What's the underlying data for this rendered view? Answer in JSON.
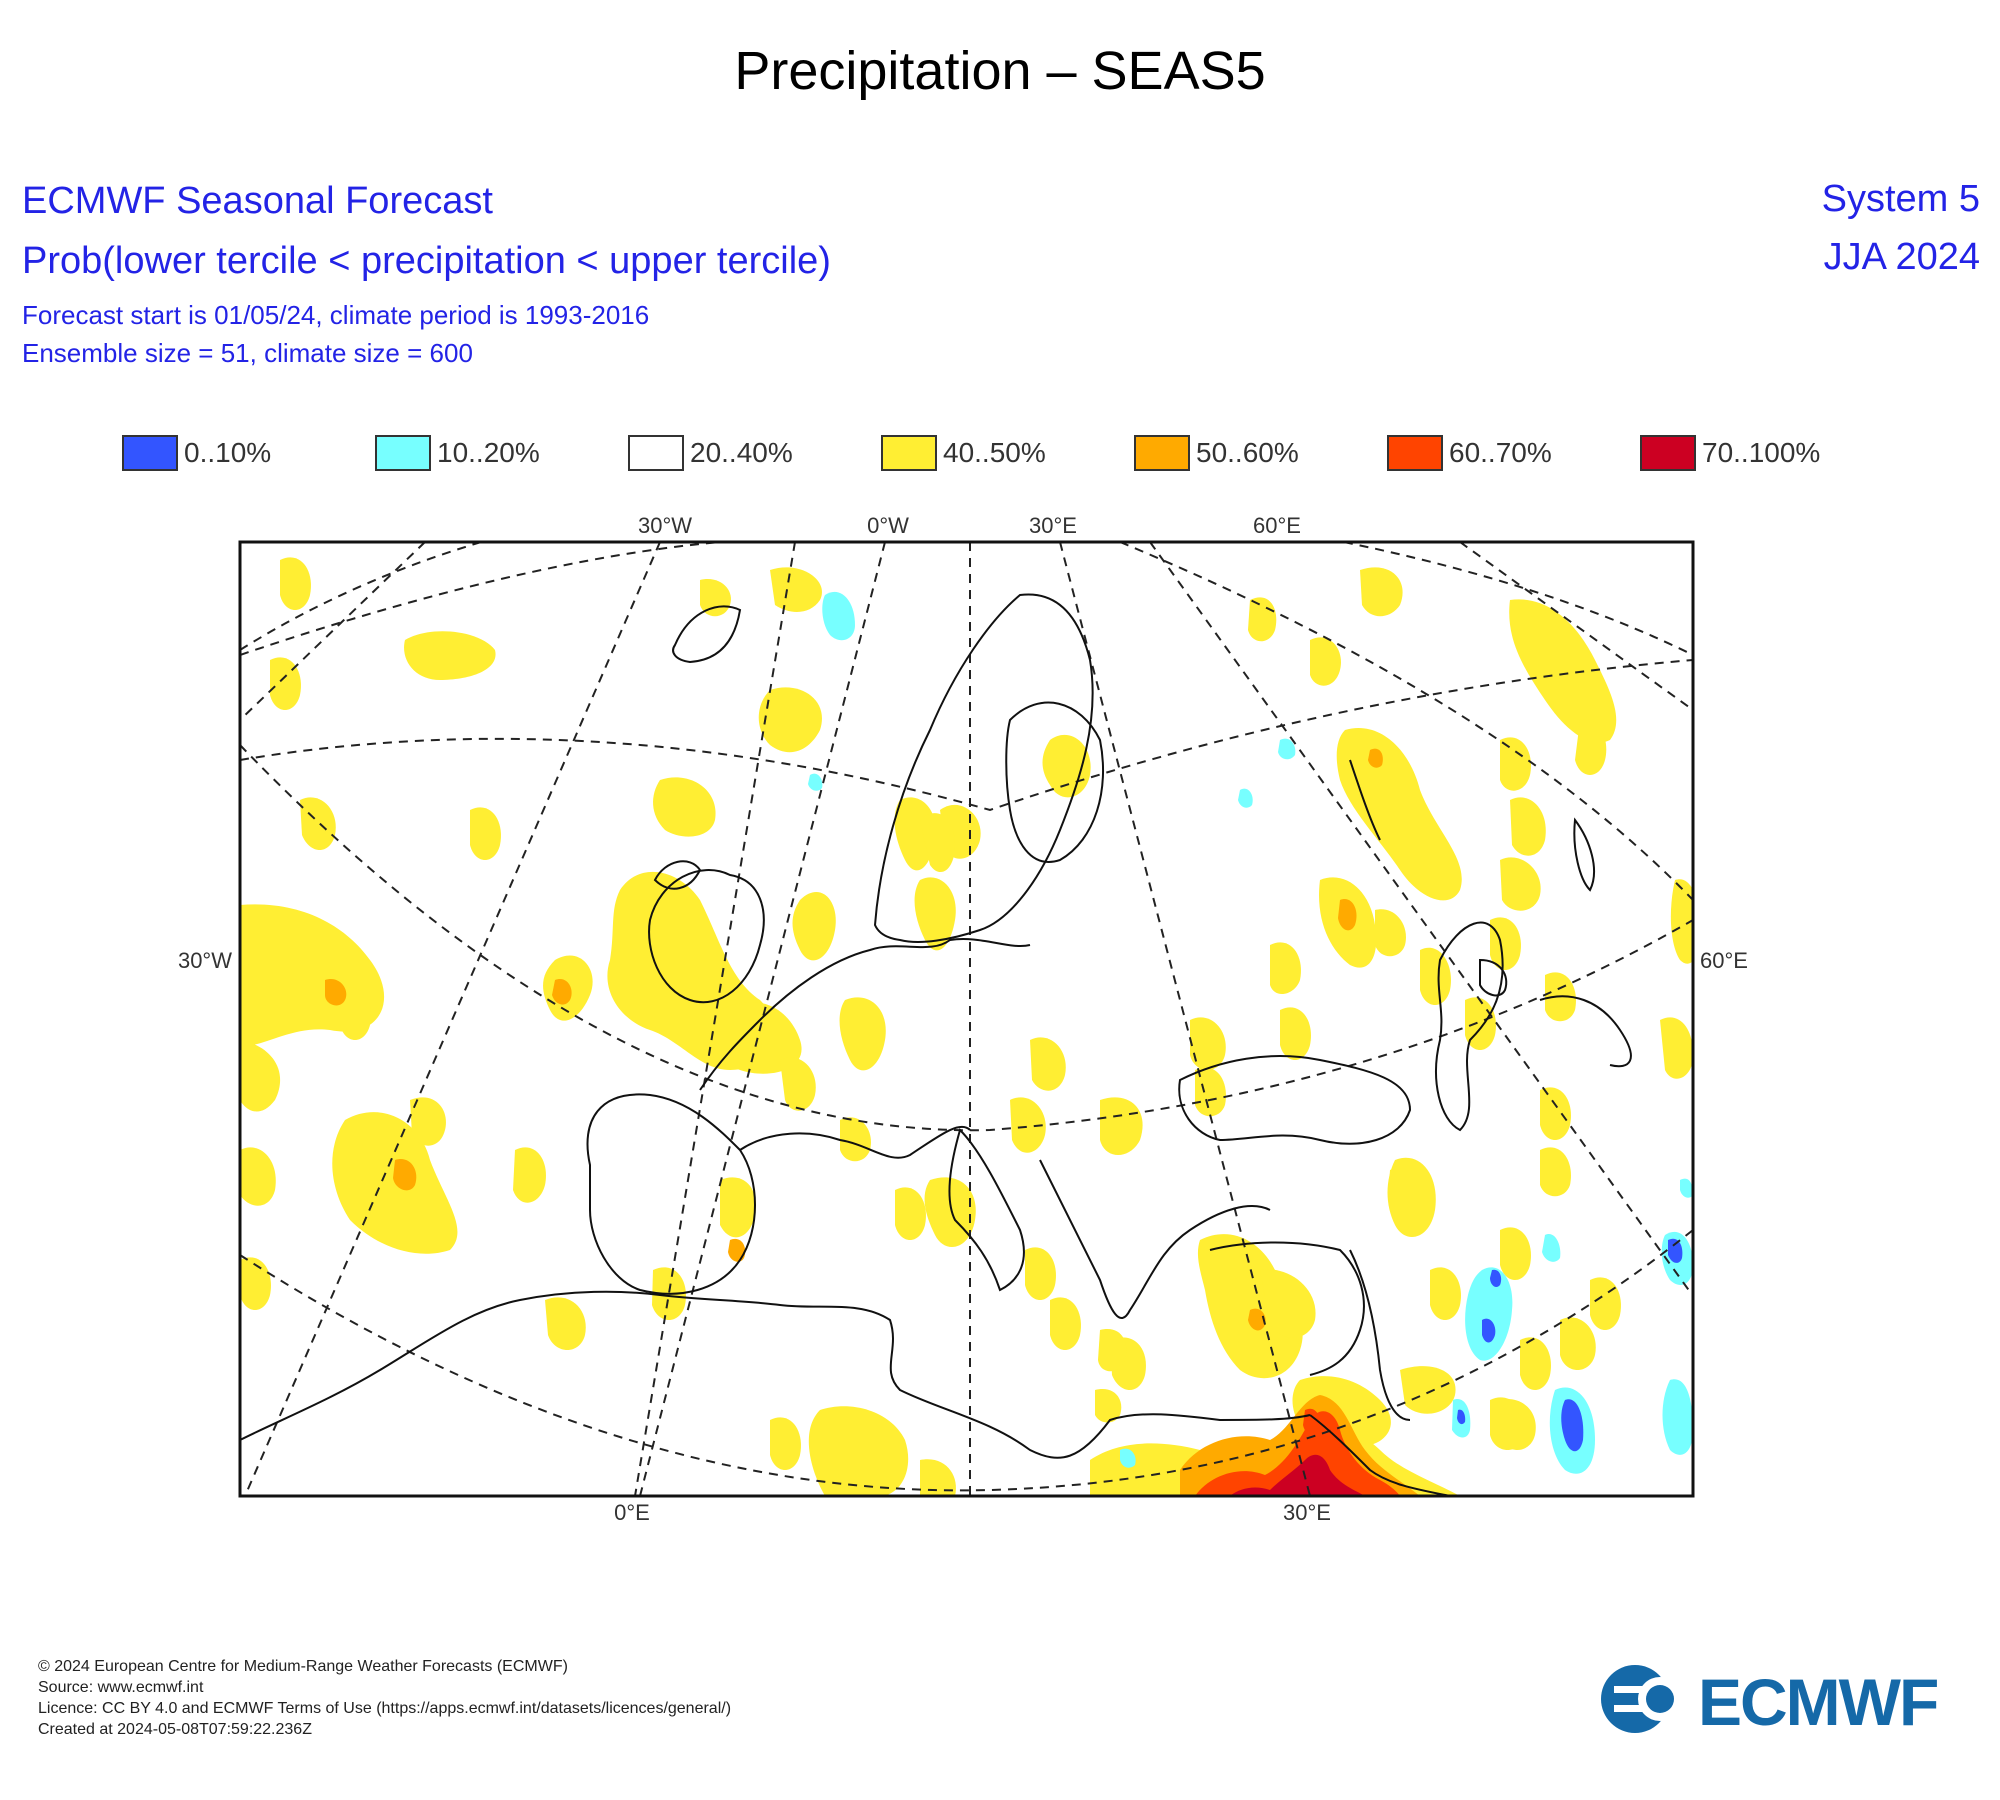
{
  "title": "Precipitation – SEAS5",
  "header": {
    "line1": "ECMWF Seasonal Forecast",
    "line2": "Prob(lower tercile < precipitation < upper tercile)",
    "line3": "Forecast start is 01/05/24, climate period is 1993-2016",
    "line4": "Ensemble size = 51, climate size = 600",
    "system": "System 5",
    "season": "JJA 2024"
  },
  "legend": [
    {
      "label": "0..10%",
      "color": "#3355ff"
    },
    {
      "label": "10..20%",
      "color": "#77ffff"
    },
    {
      "label": "20..40%",
      "color": "#ffffff"
    },
    {
      "label": "40..50%",
      "color": "#ffee33"
    },
    {
      "label": "50..60%",
      "color": "#ffaa00"
    },
    {
      "label": "60..70%",
      "color": "#ff4400"
    },
    {
      "label": "70..100%",
      "color": "#cc0022"
    }
  ],
  "map": {
    "lon_labels_top": [
      "30°W",
      "0°W",
      "30°E",
      "60°E"
    ],
    "lon_labels_bottom": [
      "0°E",
      "30°E"
    ],
    "lat_label_left": "30°W",
    "lat_label_right": "60°E"
  },
  "footer": {
    "copyright": "© 2024 European Centre for Medium-Range Weather Forecasts (ECMWF)",
    "source": "Source: www.ecmwf.int",
    "licence": "Licence: CC BY 4.0 and ECMWF Terms of Use (https://apps.ecmwf.int/datasets/licences/general/)",
    "created": "Created at 2024-05-08T07:59:22.236Z",
    "logo_text": "ECMWF"
  }
}
